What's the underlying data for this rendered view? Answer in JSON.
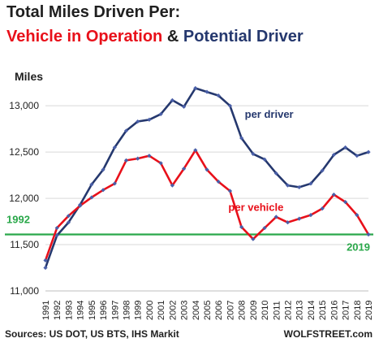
{
  "title": {
    "line1": "Total Miles Driven Per:",
    "part_vehicle": "Vehicle in Operation",
    "part_amp": "&",
    "part_driver": "Potential Driver"
  },
  "colors": {
    "per_vehicle": "#e8101a",
    "per_driver": "#25386e",
    "marker": "#4a5fa8",
    "reference": "#2aa84a",
    "grid": "#d9d9d9"
  },
  "footer": {
    "sources": "Sources: US DOT, US BTS, IHS Markit",
    "brand": "WOLFSTREET.com"
  },
  "chart_data": {
    "type": "line",
    "ylabel": "Miles",
    "ylim": [
      11000,
      13300
    ],
    "yticks": [
      11000,
      11500,
      12000,
      12500,
      13000
    ],
    "grid": "horizontal",
    "categories": [
      "1991",
      "1992",
      "1993",
      "1994",
      "1995",
      "1996",
      "1997",
      "1998",
      "1999",
      "2000",
      "2001",
      "2002",
      "2003",
      "2004",
      "2005",
      "2006",
      "2007",
      "2008",
      "2009",
      "2010",
      "2011",
      "2012",
      "2013",
      "2014",
      "2015",
      "2016",
      "2017",
      "2018",
      "2019"
    ],
    "series": [
      {
        "name": "per driver",
        "color": "#25386e",
        "values": [
          11250,
          11600,
          11740,
          11930,
          12150,
          12310,
          12550,
          12730,
          12830,
          12850,
          12910,
          13060,
          12990,
          13190,
          13150,
          13110,
          13000,
          12650,
          12480,
          12420,
          12270,
          12140,
          12120,
          12160,
          12300,
          12470,
          12550,
          12460,
          12500
        ]
      },
      {
        "name": "per vehicle",
        "color": "#e8101a",
        "values": [
          11330,
          11680,
          11810,
          11920,
          12010,
          12090,
          12160,
          12410,
          12430,
          12460,
          12380,
          12140,
          12320,
          12520,
          12310,
          12180,
          12080,
          11690,
          11560,
          11680,
          11800,
          11740,
          11780,
          11820,
          11890,
          12040,
          11960,
          11820,
          11610
        ]
      }
    ],
    "reference_line": {
      "value": 11610,
      "left_label": "1992",
      "right_label": "2019"
    }
  }
}
